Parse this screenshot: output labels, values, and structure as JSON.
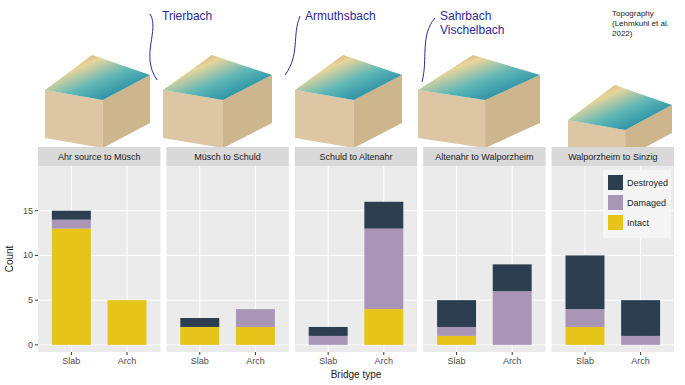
{
  "chart_data": {
    "type": "bar",
    "stacked": true,
    "panels": [
      "Ahr source to Müsch",
      "Müsch to Schuld",
      "Schuld to Altenahr",
      "Altenahr to Walporzheim",
      "Walporzheim to Sinzig"
    ],
    "categories": [
      "Slab",
      "Arch"
    ],
    "series": [
      {
        "name": "Intact",
        "color": "#e6c419",
        "values": [
          [
            13,
            5
          ],
          [
            2,
            2
          ],
          [
            0,
            4
          ],
          [
            1,
            0
          ],
          [
            2,
            0
          ]
        ]
      },
      {
        "name": "Damaged",
        "color": "#a996b6",
        "values": [
          [
            1,
            0
          ],
          [
            0,
            2
          ],
          [
            1,
            9
          ],
          [
            1,
            6
          ],
          [
            2,
            1
          ]
        ]
      },
      {
        "name": "Destroyed",
        "color": "#2d3e50",
        "values": [
          [
            1,
            0
          ],
          [
            1,
            0
          ],
          [
            1,
            3
          ],
          [
            3,
            3
          ],
          [
            6,
            4
          ]
        ]
      }
    ],
    "x_label": "Bridge type",
    "y_label": "Count",
    "ylim": [
      -0.8,
      20
    ],
    "yticks": [
      0,
      5,
      10,
      15
    ],
    "grid": true,
    "legend": "top-right",
    "annotations": [
      [
        "Trierbach"
      ],
      [
        "Armuthsbach"
      ],
      [
        "Sahrbach",
        "Vischelbach"
      ],
      [
        "Topography",
        "(Lehmkuhl et al.",
        "2022)"
      ]
    ]
  }
}
